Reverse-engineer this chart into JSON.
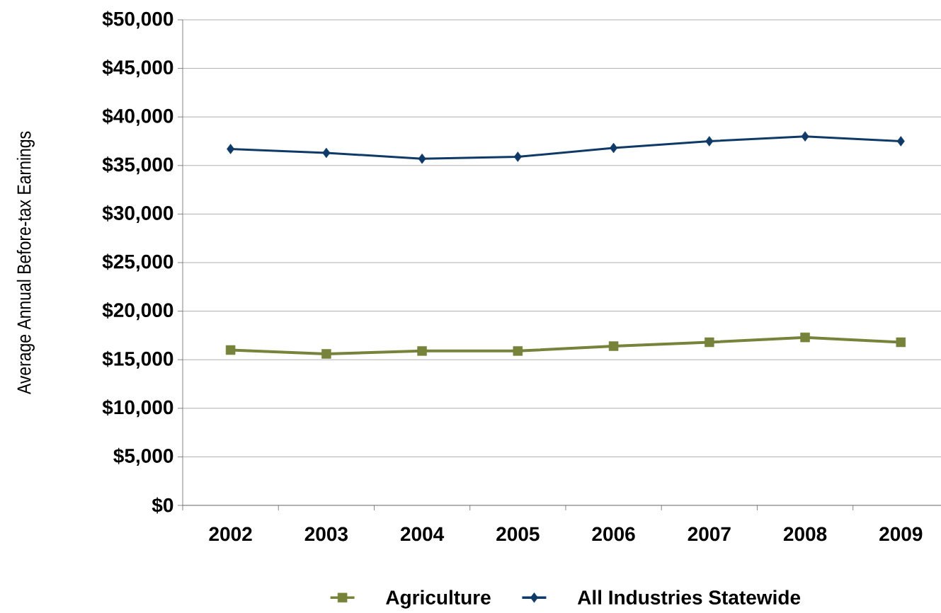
{
  "chart_data": {
    "type": "line",
    "ylabel": "Average Annual Before-tax Earnings",
    "categories": [
      "2002",
      "2003",
      "2004",
      "2005",
      "2006",
      "2007",
      "2008",
      "2009"
    ],
    "series": [
      {
        "name": "Agriculture",
        "color": "#77823a",
        "marker": "square",
        "values": [
          16000,
          15600,
          15900,
          15900,
          16400,
          16800,
          17300,
          16800
        ]
      },
      {
        "name": "All Industries Statewide",
        "color": "#0f3a67",
        "marker": "diamond",
        "values": [
          36700,
          36300,
          35700,
          35900,
          36800,
          37500,
          38000,
          37500
        ]
      }
    ],
    "ylim": [
      0,
      50000
    ],
    "yticks": [
      {
        "value": 0,
        "label": "$0"
      },
      {
        "value": 5000,
        "label": "$5,000"
      },
      {
        "value": 10000,
        "label": "$10,000"
      },
      {
        "value": 15000,
        "label": "$15,000"
      },
      {
        "value": 20000,
        "label": "$20,000"
      },
      {
        "value": 25000,
        "label": "$25,000"
      },
      {
        "value": 30000,
        "label": "$30,000"
      },
      {
        "value": 35000,
        "label": "$35,000"
      },
      {
        "value": 40000,
        "label": "$40,000"
      },
      {
        "value": 45000,
        "label": "$45,000"
      },
      {
        "value": 50000,
        "label": "$50,000"
      }
    ],
    "grid": "y",
    "legend": "bottom",
    "line_style": "solid"
  }
}
